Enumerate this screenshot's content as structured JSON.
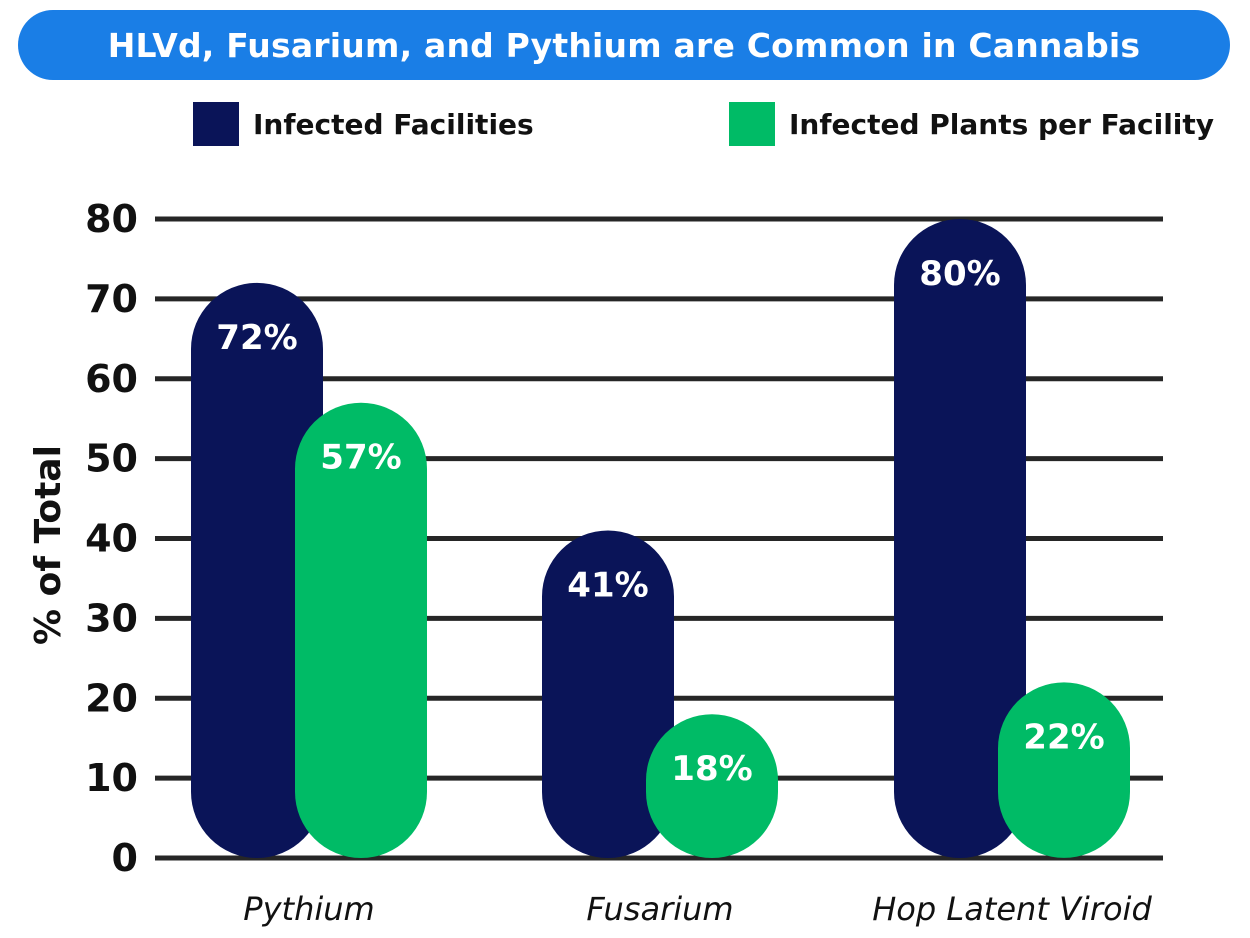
{
  "colors": {
    "title_bg": "#1a7ee6",
    "series_facilities": "#0a1458",
    "series_plants": "#00bb66",
    "gridline": "#262626",
    "text": "#111111"
  },
  "chart_data": {
    "type": "bar",
    "title": "HLVd, Fusarium, and Pythium are Common in Cannabis",
    "categories": [
      "Pythium",
      "Fusarium",
      "Hop Latent Viroid"
    ],
    "series": [
      {
        "name": "Infected Facilities",
        "values": [
          72,
          41,
          80
        ],
        "labels": [
          "72%",
          "41%",
          "80%"
        ]
      },
      {
        "name": "Infected Plants per Facility",
        "values": [
          57,
          18,
          22
        ],
        "labels": [
          "57%",
          "18%",
          "22%"
        ]
      }
    ],
    "ylabel": "% of Total",
    "ylim": [
      0,
      80
    ],
    "yticks": [
      0,
      10,
      20,
      30,
      40,
      50,
      60,
      70,
      80
    ],
    "grid": true,
    "legend": "top"
  }
}
